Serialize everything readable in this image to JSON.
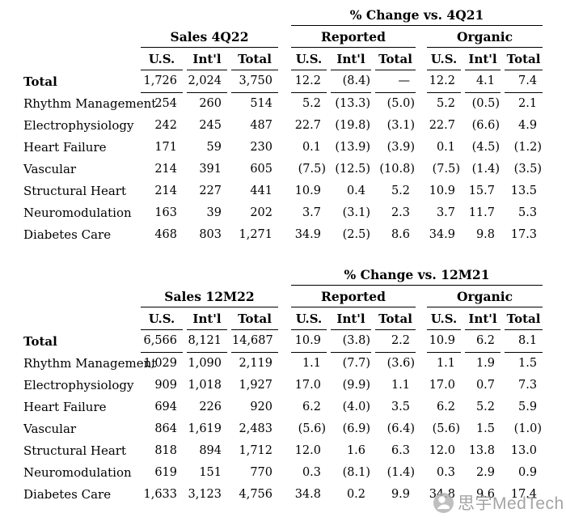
{
  "watermark": {
    "text": "思宇MedTech",
    "logo": "mascot-logo"
  },
  "tables": [
    {
      "change_header": "% Change vs. 4Q21",
      "sales_header": "Sales 4Q22",
      "group_headers": [
        "Reported",
        "Organic"
      ],
      "col_headers": [
        "U.S.",
        "Int'l",
        "Total"
      ],
      "rows": [
        {
          "label": "Total",
          "sales": [
            "1,726",
            "2,024",
            "3,750"
          ],
          "reported": [
            "12.2",
            "(8.4)",
            "—"
          ],
          "organic": [
            "12.2",
            "4.1",
            "7.4"
          ]
        },
        {
          "label": "Rhythm Management",
          "sales": [
            "254",
            "260",
            "514"
          ],
          "reported": [
            "5.2",
            "(13.3)",
            "(5.0)"
          ],
          "organic": [
            "5.2",
            "(0.5)",
            "2.1"
          ]
        },
        {
          "label": "Electrophysiology",
          "sales": [
            "242",
            "245",
            "487"
          ],
          "reported": [
            "22.7",
            "(19.8)",
            "(3.1)"
          ],
          "organic": [
            "22.7",
            "(6.6)",
            "4.9"
          ]
        },
        {
          "label": "Heart Failure",
          "sales": [
            "171",
            "59",
            "230"
          ],
          "reported": [
            "0.1",
            "(13.9)",
            "(3.9)"
          ],
          "organic": [
            "0.1",
            "(4.5)",
            "(1.2)"
          ]
        },
        {
          "label": "Vascular",
          "sales": [
            "214",
            "391",
            "605"
          ],
          "reported": [
            "(7.5)",
            "(12.5)",
            "(10.8)"
          ],
          "organic": [
            "(7.5)",
            "(1.4)",
            "(3.5)"
          ]
        },
        {
          "label": "Structural Heart",
          "sales": [
            "214",
            "227",
            "441"
          ],
          "reported": [
            "10.9",
            "0.4",
            "5.2"
          ],
          "organic": [
            "10.9",
            "15.7",
            "13.5"
          ]
        },
        {
          "label": "Neuromodulation",
          "sales": [
            "163",
            "39",
            "202"
          ],
          "reported": [
            "3.7",
            "(3.1)",
            "2.3"
          ],
          "organic": [
            "3.7",
            "11.7",
            "5.3"
          ]
        },
        {
          "label": "Diabetes Care",
          "sales": [
            "468",
            "803",
            "1,271"
          ],
          "reported": [
            "34.9",
            "(2.5)",
            "8.6"
          ],
          "organic": [
            "34.9",
            "9.8",
            "17.3"
          ]
        }
      ]
    },
    {
      "change_header": "% Change vs. 12M21",
      "sales_header": "Sales 12M22",
      "group_headers": [
        "Reported",
        "Organic"
      ],
      "col_headers": [
        "U.S.",
        "Int'l",
        "Total"
      ],
      "rows": [
        {
          "label": "Total",
          "sales": [
            "6,566",
            "8,121",
            "14,687"
          ],
          "reported": [
            "10.9",
            "(3.8)",
            "2.2"
          ],
          "organic": [
            "10.9",
            "6.2",
            "8.1"
          ]
        },
        {
          "label": "Rhythm Management",
          "sales": [
            "1,029",
            "1,090",
            "2,119"
          ],
          "reported": [
            "1.1",
            "(7.7)",
            "(3.6)"
          ],
          "organic": [
            "1.1",
            "1.9",
            "1.5"
          ]
        },
        {
          "label": "Electrophysiology",
          "sales": [
            "909",
            "1,018",
            "1,927"
          ],
          "reported": [
            "17.0",
            "(9.9)",
            "1.1"
          ],
          "organic": [
            "17.0",
            "0.7",
            "7.3"
          ]
        },
        {
          "label": "Heart Failure",
          "sales": [
            "694",
            "226",
            "920"
          ],
          "reported": [
            "6.2",
            "(4.0)",
            "3.5"
          ],
          "organic": [
            "6.2",
            "5.2",
            "5.9"
          ]
        },
        {
          "label": "Vascular",
          "sales": [
            "864",
            "1,619",
            "2,483"
          ],
          "reported": [
            "(5.6)",
            "(6.9)",
            "(6.4)"
          ],
          "organic": [
            "(5.6)",
            "1.5",
            "(1.0)"
          ]
        },
        {
          "label": "Structural Heart",
          "sales": [
            "818",
            "894",
            "1,712"
          ],
          "reported": [
            "12.0",
            "1.6",
            "6.3"
          ],
          "organic": [
            "12.0",
            "13.8",
            "13.0"
          ]
        },
        {
          "label": "Neuromodulation",
          "sales": [
            "619",
            "151",
            "770"
          ],
          "reported": [
            "0.3",
            "(8.1)",
            "(1.4)"
          ],
          "organic": [
            "0.3",
            "2.9",
            "0.9"
          ]
        },
        {
          "label": "Diabetes Care",
          "sales": [
            "1,633",
            "3,123",
            "4,756"
          ],
          "reported": [
            "34.8",
            "0.2",
            "9.9"
          ],
          "organic": [
            "34.8",
            "9.6",
            "17.4"
          ]
        }
      ]
    }
  ]
}
